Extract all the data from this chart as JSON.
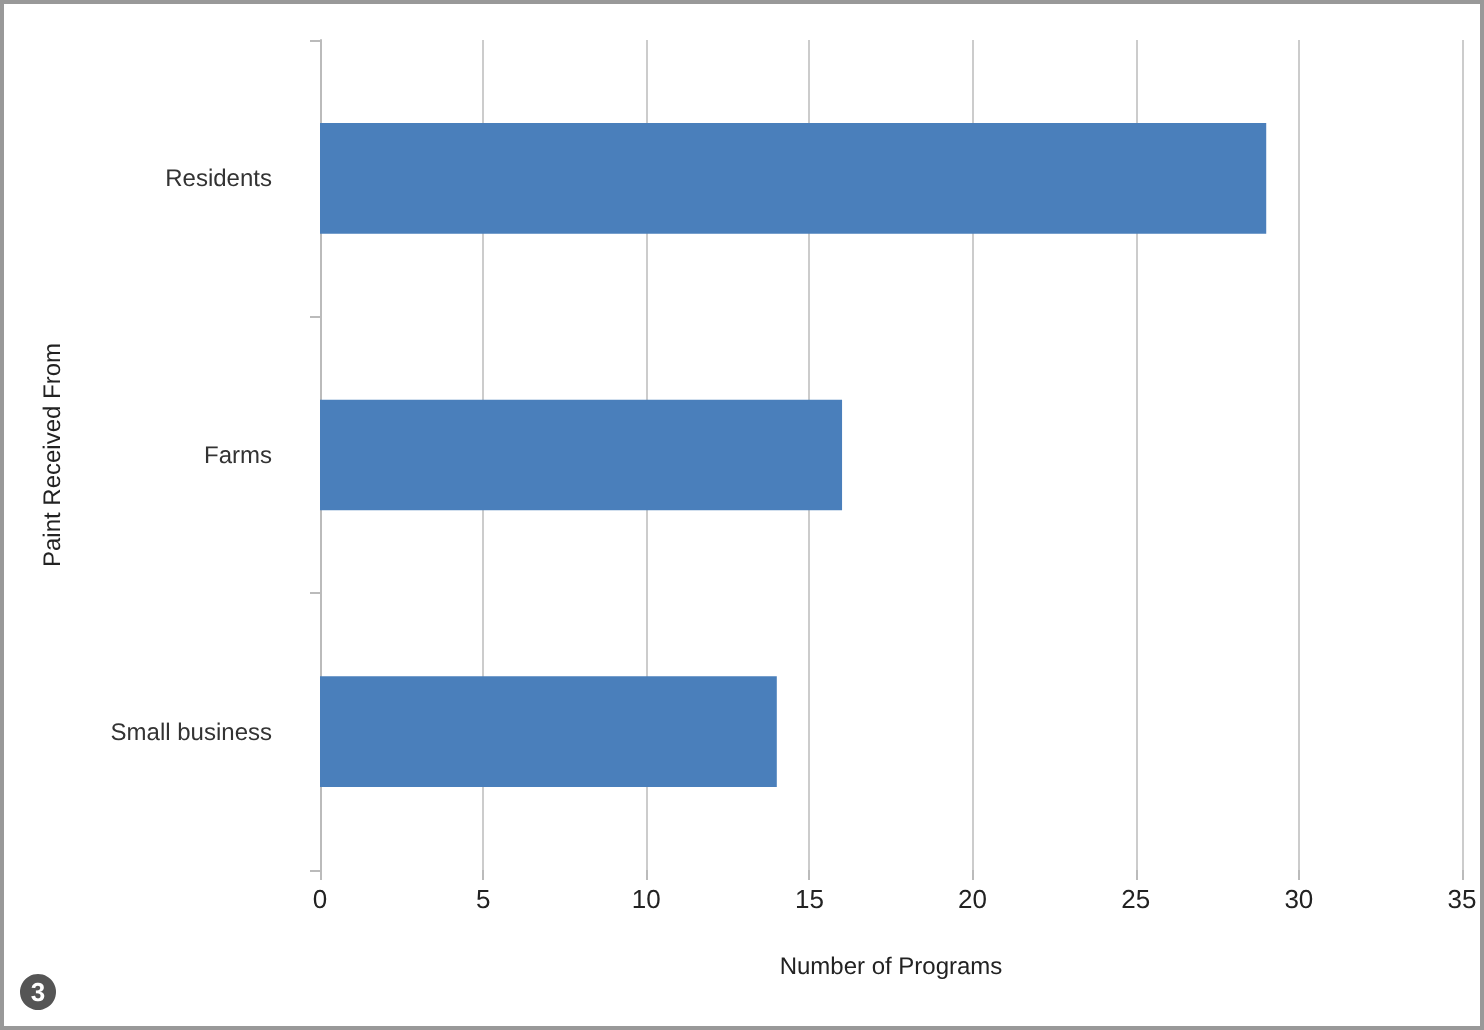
{
  "chart_data": {
    "type": "bar",
    "orientation": "horizontal",
    "categories": [
      "Residents",
      "Farms",
      "Small business"
    ],
    "values": [
      29,
      16,
      14
    ],
    "color": "#4a7fbb",
    "xlim": [
      0,
      35
    ],
    "xticks": [
      0,
      5,
      10,
      15,
      20,
      25,
      30,
      35
    ],
    "xlabel": "Number of Programs",
    "ylabel": "Paint Received From",
    "grid": "x",
    "annotations": [
      "3"
    ]
  }
}
